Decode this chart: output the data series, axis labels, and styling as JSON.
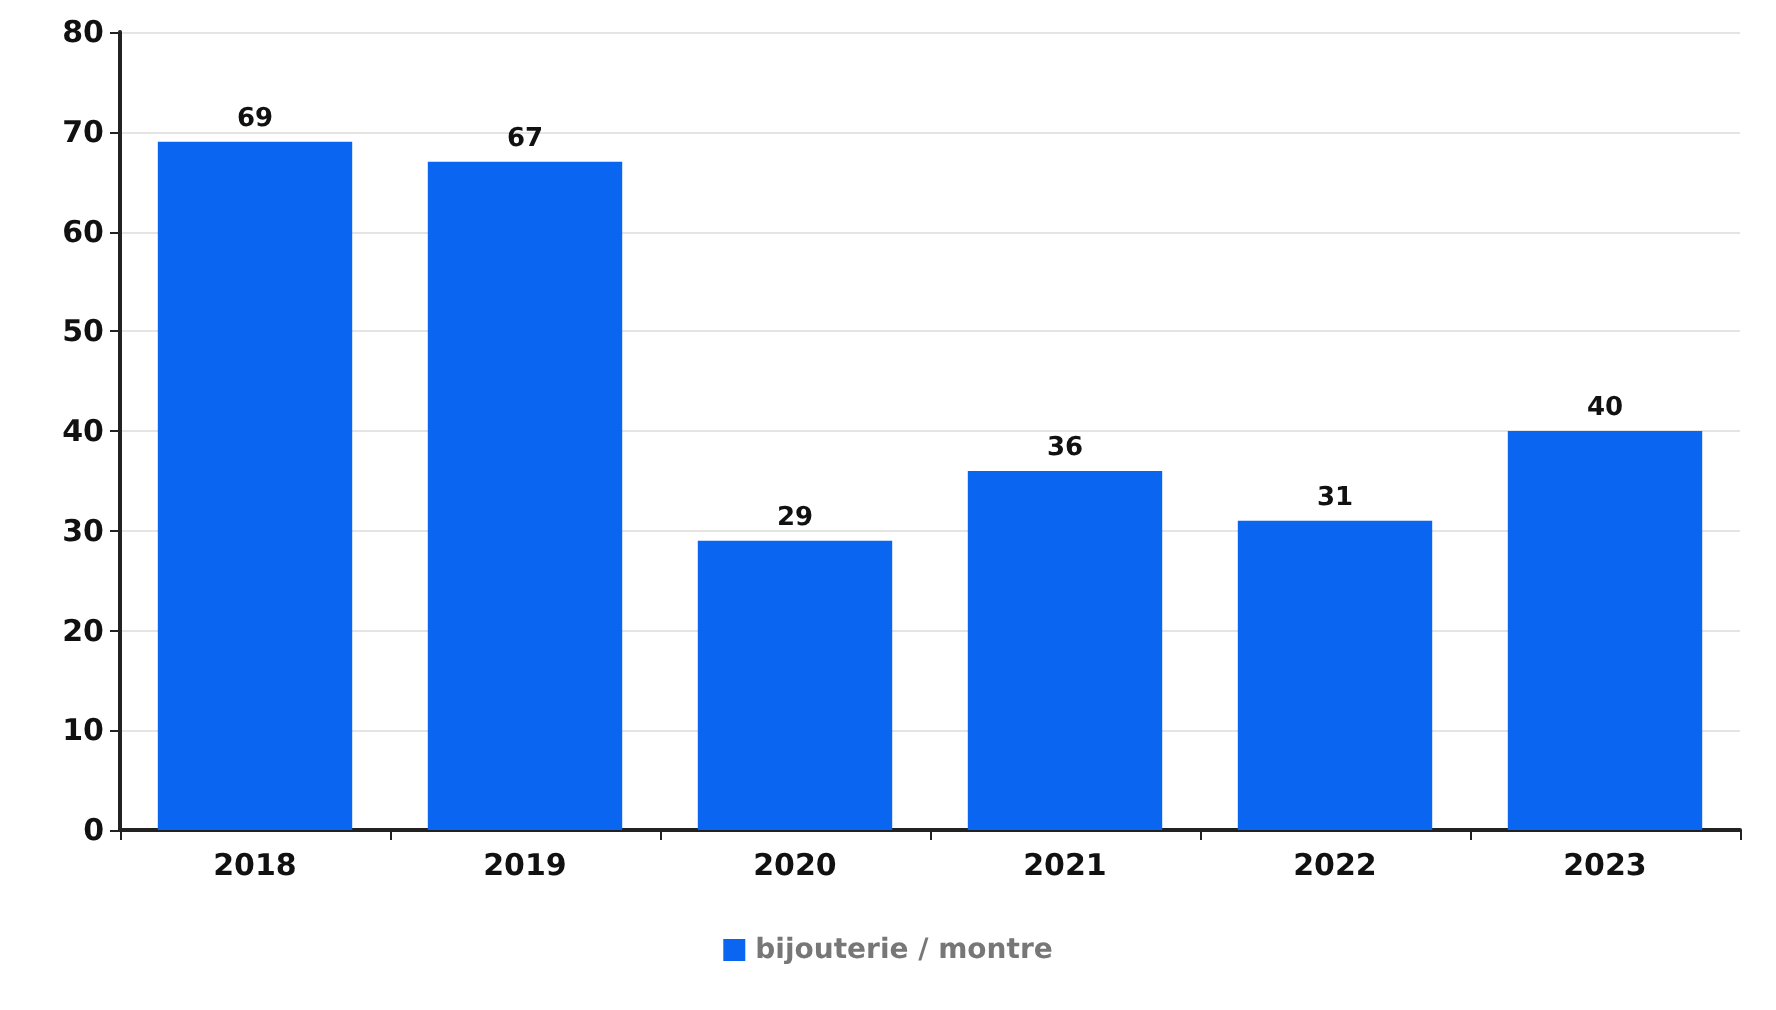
{
  "chart_data": {
    "type": "bar",
    "categories": [
      "2018",
      "2019",
      "2020",
      "2021",
      "2022",
      "2023"
    ],
    "series": [
      {
        "name": "bijouterie / montre",
        "color": "#0a66f0",
        "values": [
          69,
          67,
          29,
          36,
          31,
          40
        ]
      }
    ],
    "ylim": [
      0,
      80
    ],
    "yticks": [
      0,
      10,
      20,
      30,
      40,
      50,
      60,
      70,
      80
    ],
    "grid": "y",
    "legend": "bottom",
    "data_labels": true
  }
}
